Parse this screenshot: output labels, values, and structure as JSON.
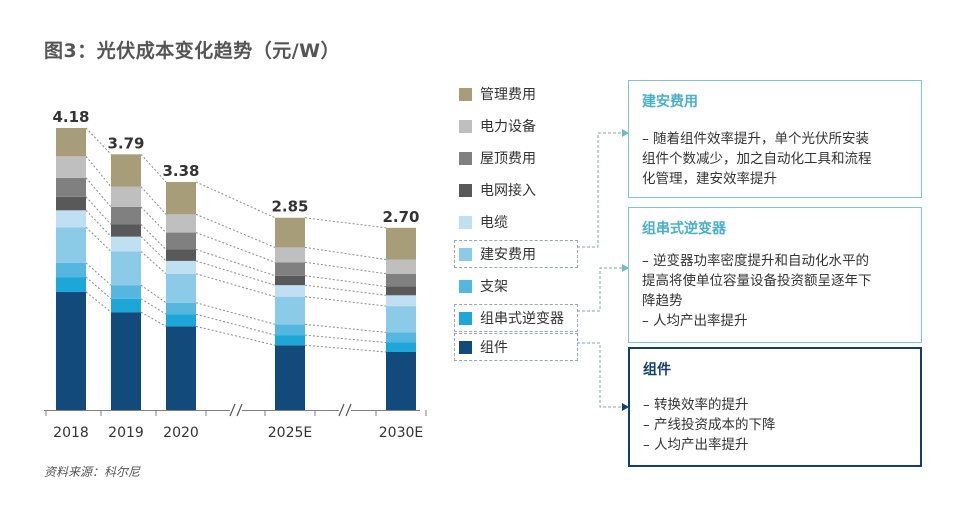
{
  "title": "图3：光伏成本变化趋势（元/W）",
  "source": "资料来源：科尔尼",
  "colors": {
    "管理费用": "#a79d78",
    "电力设备": "#bfbfbf",
    "屋顶费用": "#808080",
    "电网接入": "#595959",
    "电缆": "#bfe0f2",
    "建安费用": "#8ccbe8",
    "支架": "#55b7e0",
    "组串式逆变器": "#1da7d8",
    "组件": "#134a7c"
  },
  "chart_data": {
    "type": "bar",
    "stacked": true,
    "categories": [
      "2018",
      "2019",
      "2020",
      "2025E",
      "2030E"
    ],
    "totals": [
      4.18,
      3.79,
      3.38,
      2.85,
      2.7
    ],
    "axis_break_after": [
      "2020",
      "2025E"
    ],
    "series": [
      {
        "name": "组件",
        "values": [
          1.75,
          1.45,
          1.24,
          0.96,
          0.86
        ]
      },
      {
        "name": "组串式逆变器",
        "values": [
          0.22,
          0.2,
          0.18,
          0.15,
          0.14
        ]
      },
      {
        "name": "支架",
        "values": [
          0.21,
          0.2,
          0.17,
          0.16,
          0.15
        ]
      },
      {
        "name": "建安费用",
        "values": [
          0.53,
          0.5,
          0.43,
          0.41,
          0.39
        ]
      },
      {
        "name": "电缆",
        "values": [
          0.25,
          0.22,
          0.19,
          0.17,
          0.16
        ]
      },
      {
        "name": "电网接入",
        "values": [
          0.2,
          0.18,
          0.17,
          0.14,
          0.13
        ]
      },
      {
        "name": "屋顶费用",
        "values": [
          0.28,
          0.26,
          0.25,
          0.2,
          0.19
        ]
      },
      {
        "name": "电力设备",
        "values": [
          0.32,
          0.3,
          0.27,
          0.22,
          0.21
        ]
      },
      {
        "name": "管理费用",
        "values": [
          0.42,
          0.48,
          0.48,
          0.44,
          0.47
        ]
      }
    ],
    "ylim": [
      0,
      4.2
    ],
    "grid": false
  },
  "legend": [
    {
      "label": "管理费用"
    },
    {
      "label": "电力设备"
    },
    {
      "label": "屋顶费用"
    },
    {
      "label": "电网接入"
    },
    {
      "label": "电缆"
    },
    {
      "label": "建安费用"
    },
    {
      "label": "支架"
    },
    {
      "label": "组串式逆变器"
    },
    {
      "label": "组件"
    }
  ],
  "callouts": {
    "install": {
      "title": "建安费用",
      "lines": [
        "– 随着组件效率提升，单个光伏所安装",
        "组件个数减少，加之自动化工具和流程",
        "化管理，建安效率提升"
      ]
    },
    "inverter": {
      "title": "组串式逆变器",
      "lines": [
        "– 逆变器功率密度提升和自动化水平的",
        "提高将使单位容量设备投资额呈逐年下",
        "降趋势",
        "– 人均产出率提升"
      ]
    },
    "module": {
      "title": "组件",
      "lines": [
        "– 转换效率的提升",
        "– 产线投资成本的下降",
        "– 人均产出率提升"
      ]
    }
  }
}
